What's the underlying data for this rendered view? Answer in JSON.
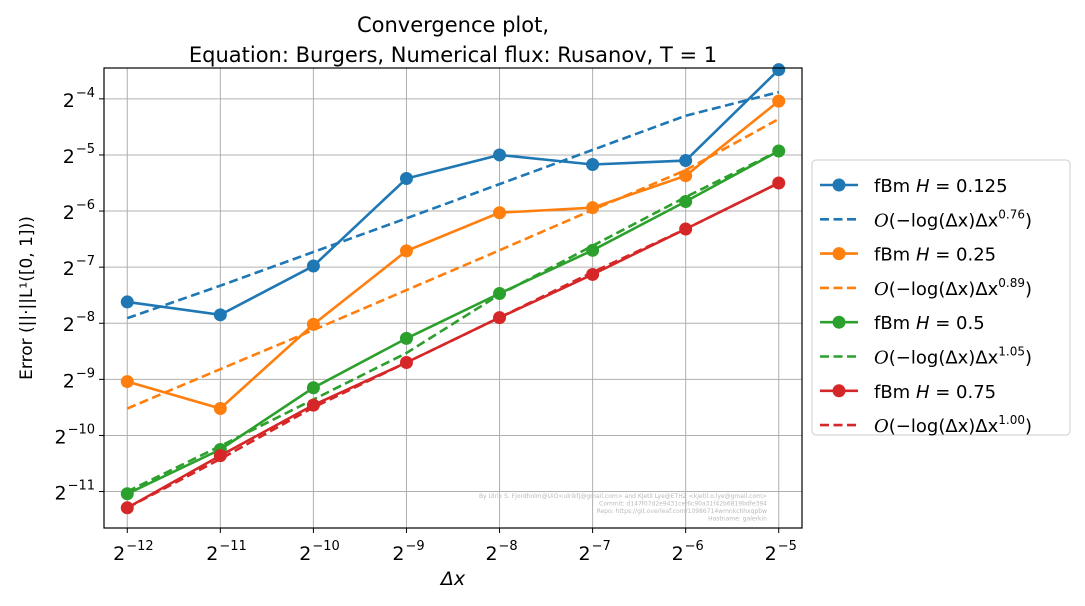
{
  "chart_data": {
    "type": "line",
    "title": "Convergence plot,\nEquation: Burgers, Numerical flux: Rusanov, T = 1",
    "title_lines": [
      "Convergence plot,",
      "Equation: Burgers, Numerical flux: Rusanov, T = 1"
    ],
    "xlabel": "Δx",
    "ylabel": "Error (||·||L¹([0, 1]))",
    "x_scale": "log2",
    "y_scale": "log2",
    "xlim_exp": [
      -12.25,
      -4.75
    ],
    "ylim_exp": [
      -11.65,
      -3.45
    ],
    "x_ticks": [
      {
        "exp": -12,
        "label": "−12"
      },
      {
        "exp": -11,
        "label": "−11"
      },
      {
        "exp": -10,
        "label": "−10"
      },
      {
        "exp": -9,
        "label": "−9"
      },
      {
        "exp": -8,
        "label": "−8"
      },
      {
        "exp": -7,
        "label": "−7"
      },
      {
        "exp": -6,
        "label": "−6"
      },
      {
        "exp": -5,
        "label": "−5"
      }
    ],
    "y_ticks": [
      {
        "exp": -11,
        "label": "−11"
      },
      {
        "exp": -10,
        "label": "−10"
      },
      {
        "exp": -9,
        "label": "−9"
      },
      {
        "exp": -8,
        "label": "−8"
      },
      {
        "exp": -7,
        "label": "−7"
      },
      {
        "exp": -6,
        "label": "−6"
      },
      {
        "exp": -5,
        "label": "−5"
      },
      {
        "exp": -4,
        "label": "−4"
      }
    ],
    "tick_base": "2",
    "grid": true,
    "legend_position": "outside-right",
    "x_exp": [
      -12,
      -11,
      -10,
      -9,
      -8,
      -7,
      -6,
      -5
    ],
    "series": [
      {
        "name": "fBm H = 0.125",
        "kind": "data",
        "color": "#1f77b4",
        "y_exp": [
          -7.62,
          -7.85,
          -6.98,
          -5.42,
          -5.0,
          -5.17,
          -5.1,
          -3.48
        ]
      },
      {
        "name": "O(−log(Δx)Δx^0.76)",
        "kind": "fit",
        "color": "#1f77b4",
        "y_exp": [
          -7.91,
          -7.33,
          -6.73,
          -6.13,
          -5.52,
          -4.91,
          -4.3,
          -3.88
        ]
      },
      {
        "name": "fBm H = 0.25",
        "kind": "data",
        "color": "#ff7f0e",
        "y_exp": [
          -9.04,
          -9.52,
          -8.02,
          -6.71,
          -6.03,
          -5.94,
          -5.37,
          -4.04
        ]
      },
      {
        "name": "O(−log(Δx)Δx^0.89)",
        "kind": "fit",
        "color": "#ff7f0e",
        "y_exp": [
          -9.52,
          -8.82,
          -8.12,
          -7.41,
          -6.7,
          -5.98,
          -5.27,
          -4.36
        ]
      },
      {
        "name": "fBm H = 0.5",
        "kind": "data",
        "color": "#2ca02c",
        "y_exp": [
          -11.04,
          -10.25,
          -9.15,
          -8.27,
          -7.47,
          -6.7,
          -5.83,
          -4.93
        ]
      },
      {
        "name": "O(−log(Δx)Δx^1.05)",
        "kind": "fit",
        "color": "#2ca02c",
        "y_exp": [
          -11.0,
          -10.19,
          -9.36,
          -8.53,
          -7.49,
          -6.62,
          -5.75,
          -4.93
        ]
      },
      {
        "name": "fBm H = 0.75",
        "kind": "data",
        "color": "#d62728",
        "y_exp": [
          -11.29,
          -10.36,
          -9.46,
          -8.7,
          -7.9,
          -7.13,
          -6.32,
          -5.5
        ]
      },
      {
        "name": "O(−log(Δx)Δx^1.00)",
        "kind": "fit",
        "color": "#d62728",
        "y_exp": [
          -11.29,
          -10.42,
          -9.5,
          -8.7,
          -7.9,
          -7.09,
          -6.32,
          -5.5
        ]
      }
    ],
    "legend": [
      {
        "type": "data",
        "color": "#1f77b4",
        "text_main": "fBm ",
        "text_var": "H",
        "text_rest": " = 0.125"
      },
      {
        "type": "fit",
        "color": "#1f77b4",
        "text_main": "−log(Δx)Δx",
        "sup": "0.76"
      },
      {
        "type": "data",
        "color": "#ff7f0e",
        "text_main": "fBm ",
        "text_var": "H",
        "text_rest": " = 0.25"
      },
      {
        "type": "fit",
        "color": "#ff7f0e",
        "text_main": "−log(Δx)Δx",
        "sup": "0.89"
      },
      {
        "type": "data",
        "color": "#2ca02c",
        "text_main": "fBm ",
        "text_var": "H",
        "text_rest": " = 0.5"
      },
      {
        "type": "fit",
        "color": "#2ca02c",
        "text_main": "−log(Δx)Δx",
        "sup": "1.05"
      },
      {
        "type": "data",
        "color": "#d62728",
        "text_main": "fBm ",
        "text_var": "H",
        "text_rest": " = 0.75"
      },
      {
        "type": "fit",
        "color": "#d62728",
        "text_main": "−log(Δx)Δx",
        "sup": "1.00"
      }
    ],
    "watermark_lines": [
      "By Ulrik S. Fjordholm@UiO<ulrikfj@gmail.com> and Kjetil Lye@ETHZ <kjetil.o.lye@gmail.com>",
      "Commit: d147f07d2e9431cef6c90a31f42b6819bdfe394",
      "Repo: https://git.overleaf.com/10986714wmnkchhxqpbw",
      "Hostname: galerkin"
    ]
  }
}
